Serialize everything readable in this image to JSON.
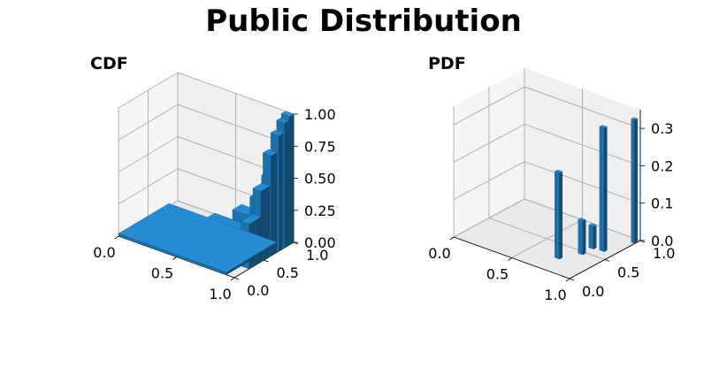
{
  "figure": {
    "title": "Public Distribution",
    "bar_color": "#1f77b4",
    "pane_color": "#f2f2f2",
    "grid_color": "#b0b0b0"
  },
  "chart_data": [
    {
      "type": "bar3d",
      "title": "CDF",
      "xlabel": "",
      "ylabel": "",
      "zlabel": "",
      "xlim": [
        0,
        1
      ],
      "ylim": [
        0,
        1
      ],
      "zlim": [
        0,
        1
      ],
      "x_ticks": [
        "0.0",
        "0.5",
        "1.0"
      ],
      "y_ticks": [
        "0.0",
        "0.5",
        "1.0"
      ],
      "z_ticks": [
        "0.00",
        "0.25",
        "0.50",
        "0.75",
        "1.00"
      ],
      "grid": true,
      "bars": [
        {
          "x": 0.93,
          "y": 0.93,
          "dx": 0.07,
          "dy": 0.07,
          "z": 1.0
        },
        {
          "x": 0.93,
          "y": 0.85,
          "dx": 0.07,
          "dy": 0.07,
          "z": 0.97
        },
        {
          "x": 0.93,
          "y": 0.75,
          "dx": 0.07,
          "dy": 0.07,
          "z": 0.9
        },
        {
          "x": 0.93,
          "y": 0.62,
          "dx": 0.07,
          "dy": 0.1,
          "z": 0.78
        },
        {
          "x": 0.93,
          "y": 0.45,
          "dx": 0.07,
          "dy": 0.15,
          "z": 0.55
        },
        {
          "x": 0.93,
          "y": 0.25,
          "dx": 0.07,
          "dy": 0.2,
          "z": 0.35
        },
        {
          "x": 0.8,
          "y": 0.85,
          "dx": 0.12,
          "dy": 0.15,
          "z": 0.5
        },
        {
          "x": 0.7,
          "y": 0.85,
          "dx": 0.1,
          "dy": 0.15,
          "z": 0.3
        },
        {
          "x": 0.55,
          "y": 0.85,
          "dx": 0.15,
          "dy": 0.15,
          "z": 0.15
        },
        {
          "x": 0.6,
          "y": 0.2,
          "dx": 0.33,
          "dy": 0.25,
          "z": 0.25
        },
        {
          "x": 0.0,
          "y": 0.0,
          "dx": 0.93,
          "dy": 0.85,
          "z": 0.02
        }
      ]
    },
    {
      "type": "bar3d",
      "title": "PDF",
      "xlabel": "",
      "ylabel": "",
      "zlabel": "",
      "xlim": [
        0,
        1
      ],
      "ylim": [
        0,
        1
      ],
      "zlim": [
        0,
        0.35
      ],
      "x_ticks": [
        "0.0",
        "0.5",
        "1.0"
      ],
      "y_ticks": [
        "0.0",
        "0.5",
        "1.0"
      ],
      "z_ticks": [
        "0.0",
        "0.1",
        "0.2",
        "0.3"
      ],
      "grid": true,
      "bars": [
        {
          "x": 0.72,
          "y": 0.25,
          "dx": 0.04,
          "dy": 0.04,
          "z": 0.23
        },
        {
          "x": 0.8,
          "y": 0.6,
          "dx": 0.04,
          "dy": 0.04,
          "z": 0.06
        },
        {
          "x": 0.8,
          "y": 0.45,
          "dx": 0.04,
          "dy": 0.04,
          "z": 0.09
        },
        {
          "x": 0.88,
          "y": 0.62,
          "dx": 0.04,
          "dy": 0.04,
          "z": 0.33
        },
        {
          "x": 0.97,
          "y": 0.92,
          "dx": 0.03,
          "dy": 0.04,
          "z": 0.33
        }
      ]
    }
  ]
}
